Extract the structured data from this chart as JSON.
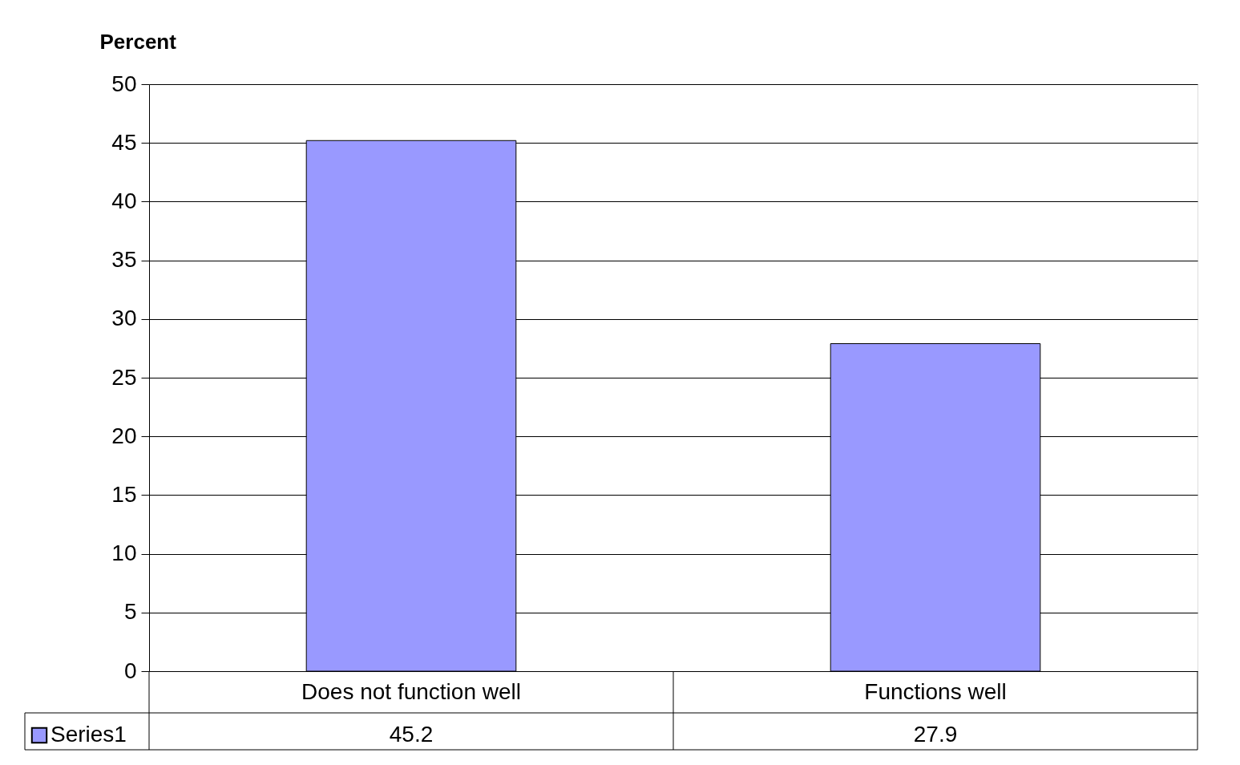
{
  "chart_data": {
    "type": "bar",
    "ylabel": "Percent",
    "categories": [
      "Does not function well",
      "Functions well"
    ],
    "series": [
      {
        "name": "Series1",
        "color": "#9999ff",
        "values": [
          45.2,
          27.9
        ]
      }
    ],
    "ylim": [
      0,
      50
    ],
    "yticks": [
      0,
      5,
      10,
      15,
      20,
      25,
      30,
      35,
      40,
      45,
      50
    ],
    "grid": "y",
    "data_labels": true,
    "legend": "bottom left"
  }
}
